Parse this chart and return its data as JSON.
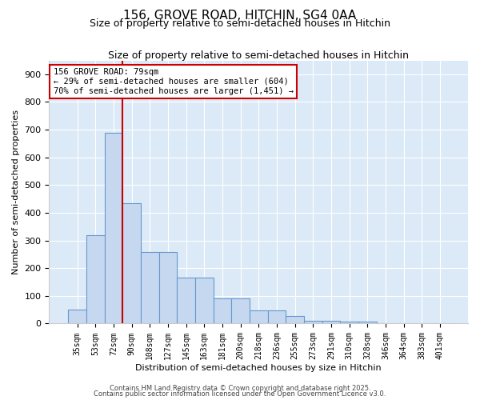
{
  "title": "156, GROVE ROAD, HITCHIN, SG4 0AA",
  "subtitle": "Size of property relative to semi-detached houses in Hitchin",
  "xlabel": "Distribution of semi-detached houses by size in Hitchin",
  "ylabel": "Number of semi-detached properties",
  "categories": [
    "35sqm",
    "53sqm",
    "72sqm",
    "90sqm",
    "108sqm",
    "127sqm",
    "145sqm",
    "163sqm",
    "181sqm",
    "200sqm",
    "218sqm",
    "236sqm",
    "255sqm",
    "273sqm",
    "291sqm",
    "310sqm",
    "328sqm",
    "346sqm",
    "364sqm",
    "383sqm",
    "401sqm"
  ],
  "values": [
    50,
    320,
    690,
    435,
    258,
    258,
    165,
    165,
    90,
    90,
    47,
    47,
    27,
    10,
    10,
    7,
    7,
    0,
    0,
    0,
    0
  ],
  "bar_color": "#c5d8f0",
  "bar_edge_color": "#6699cc",
  "background_color": "#dce9f7",
  "grid_color": "#ffffff",
  "fig_background": "#ffffff",
  "vline_color": "#cc0000",
  "vline_x_index": 2,
  "annotation_text": "156 GROVE ROAD: 79sqm\n← 29% of semi-detached houses are smaller (604)\n70% of semi-detached houses are larger (1,451) →",
  "annotation_box_color": "#ffffff",
  "annotation_box_edge": "#cc0000",
  "footer1": "Contains HM Land Registry data © Crown copyright and database right 2025.",
  "footer2": "Contains public sector information licensed under the Open Government Licence v3.0.",
  "ylim": [
    0,
    950
  ],
  "yticks": [
    0,
    100,
    200,
    300,
    400,
    500,
    600,
    700,
    800,
    900
  ],
  "title_fontsize": 11,
  "subtitle_fontsize": 9
}
